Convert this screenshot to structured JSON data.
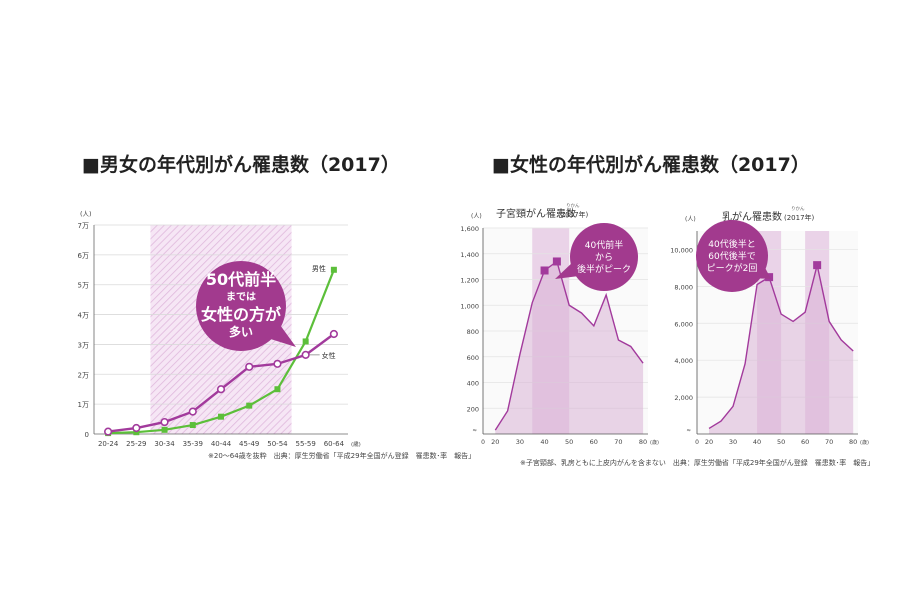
{
  "left_heading": "■男女の年代別がん罹患数（2017）",
  "right_heading": "■女性の年代別がん罹患数（2017）",
  "chart_data": [
    {
      "type": "line",
      "title": "",
      "unit": "(人)",
      "x_unit": "(歳)",
      "categories": [
        "20-24",
        "25-29",
        "30-34",
        "35-39",
        "40-44",
        "45-49",
        "50-54",
        "55-59",
        "60-64"
      ],
      "y_ticks": [
        "0",
        "1万",
        "2万",
        "3万",
        "4万",
        "5万",
        "6万",
        "7万"
      ],
      "ylim": [
        0,
        70000
      ],
      "highlight_range": [
        "30-34",
        "50-54"
      ],
      "series": [
        {
          "name": "男性",
          "color": "#5cbf3a",
          "values": [
            300,
            600,
            1400,
            3000,
            5800,
            9500,
            15000,
            31000,
            55000
          ]
        },
        {
          "name": "女性",
          "color": "#a23a9c",
          "values": [
            800,
            2000,
            4000,
            7500,
            15000,
            22500,
            23500,
            26500,
            33500
          ]
        }
      ],
      "callout": {
        "lines": [
          "50代前半",
          "までは",
          "女性の方が",
          "多い"
        ]
      },
      "footnote": "※20〜64歳を抜粋　出典：厚生労働省「平成29年全国がん登録　罹患数･率　報告」"
    },
    {
      "type": "area",
      "title": "子宮頸がん罹患数",
      "title_year": "(2017年)",
      "ruby": "りかん",
      "unit": "(人)",
      "x": [
        20,
        25,
        30,
        35,
        40,
        45,
        50,
        55,
        60,
        65,
        70,
        75,
        80
      ],
      "values": [
        30,
        180,
        620,
        1020,
        1270,
        1340,
        1000,
        940,
        840,
        1080,
        730,
        680,
        550
      ],
      "x_ticks": [
        "20",
        "30",
        "40",
        "50",
        "60",
        "70",
        "80"
      ],
      "y_ticks": [
        "200",
        "400",
        "600",
        "800",
        "1,000",
        "1,200",
        "1,400",
        "1,600"
      ],
      "ylim": [
        0,
        1600
      ],
      "highlight_range": [
        35,
        50
      ],
      "peaks": [
        40,
        45
      ],
      "callout": {
        "lines": [
          "40代前半",
          "から",
          "後半がピーク"
        ]
      }
    },
    {
      "type": "area",
      "title": "乳がん罹患数",
      "title_year": "(2017年)",
      "ruby": "りかん",
      "unit": "(人)",
      "x": [
        20,
        25,
        30,
        35,
        40,
        45,
        50,
        55,
        60,
        65,
        70,
        75,
        80
      ],
      "values": [
        300,
        700,
        1500,
        3800,
        8100,
        8500,
        6500,
        6100,
        6600,
        9150,
        6100,
        5100,
        4500
      ],
      "x_ticks": [
        "20",
        "30",
        "40",
        "50",
        "60",
        "70",
        "80"
      ],
      "y_ticks": [
        "2,000",
        "4,000",
        "6,000",
        "8,000",
        "10,000"
      ],
      "ylim": [
        0,
        11000
      ],
      "highlight_ranges": [
        [
          40,
          50
        ],
        [
          60,
          70
        ]
      ],
      "peaks": [
        45,
        65
      ],
      "callout": {
        "lines": [
          "40代後半と",
          "60代後半で",
          "ピークが2回"
        ]
      }
    }
  ],
  "right_footnote": "※子宮頸部、乳房ともに上皮内がんを含まない　出典：厚生労働省「平成29年全国がん登録　罹患数･率　報告」",
  "colors": {
    "female": "#a23a9c",
    "male": "#5cbf3a",
    "bubble": "#a23a8e",
    "area_fill": "#d9b3d6",
    "band": "#ead3e8"
  }
}
